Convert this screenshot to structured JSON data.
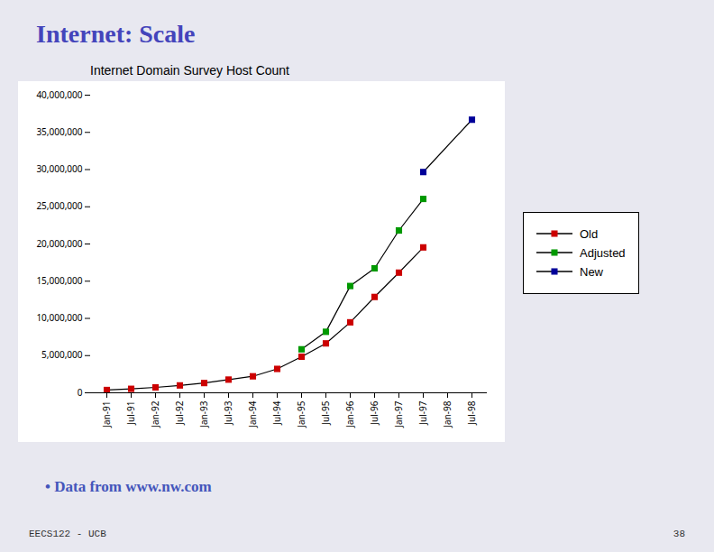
{
  "chart_data": {
    "type": "line",
    "title": "Internet Domain Survey Host Count",
    "annotations": [
      "Internet: Scale",
      "• Data from www.nw.com",
      "EECS122 - UCB",
      "38"
    ],
    "categories": [
      "Jan-91",
      "Jul-91",
      "Jan-92",
      "Jul-92",
      "Jan-93",
      "Jul-93",
      "Jan-94",
      "Jul-94",
      "Jan-95",
      "Jul-95",
      "Jan-96",
      "Jul-96",
      "Jan-97",
      "Jul-97",
      "Jan-98",
      "Jul-98"
    ],
    "series": [
      {
        "name": "Old",
        "color": "#cc0000",
        "marker": "square",
        "line_style": "solid",
        "values": [
          376000,
          535000,
          727000,
          992000,
          1313000,
          1776000,
          2217000,
          3212000,
          4852000,
          6642000,
          9472000,
          12881000,
          16146000,
          19540000,
          null,
          null
        ]
      },
      {
        "name": "Adjusted",
        "color": "#009900",
        "marker": "square",
        "line_style": "solid",
        "values": [
          null,
          null,
          null,
          null,
          null,
          null,
          null,
          null,
          5846000,
          8200000,
          14352000,
          16729000,
          21819000,
          26053000,
          null,
          null
        ]
      },
      {
        "name": "New",
        "color": "#000099",
        "marker": "square",
        "line_style": "solid",
        "values": [
          null,
          null,
          null,
          null,
          null,
          null,
          null,
          null,
          null,
          null,
          null,
          null,
          null,
          29670000,
          null,
          36700000
        ]
      }
    ],
    "ylim": [
      0,
      40000000
    ],
    "yticks": [
      0,
      {
        "value": 5000000,
        "label": "5,000,000"
      },
      {
        "value": 10000000,
        "label": "10,000,000"
      },
      {
        "value": 15000000,
        "label": "15,000,000"
      },
      {
        "value": 20000000,
        "label": "20,000,000"
      },
      {
        "value": 25000000,
        "label": "25,000,000"
      },
      {
        "value": 30000000,
        "label": "30,000,000"
      },
      {
        "value": 35000000,
        "label": "35,000,000"
      },
      {
        "value": 40000000,
        "label": "40,000,000"
      }
    ],
    "grid": false,
    "legend": "right"
  }
}
